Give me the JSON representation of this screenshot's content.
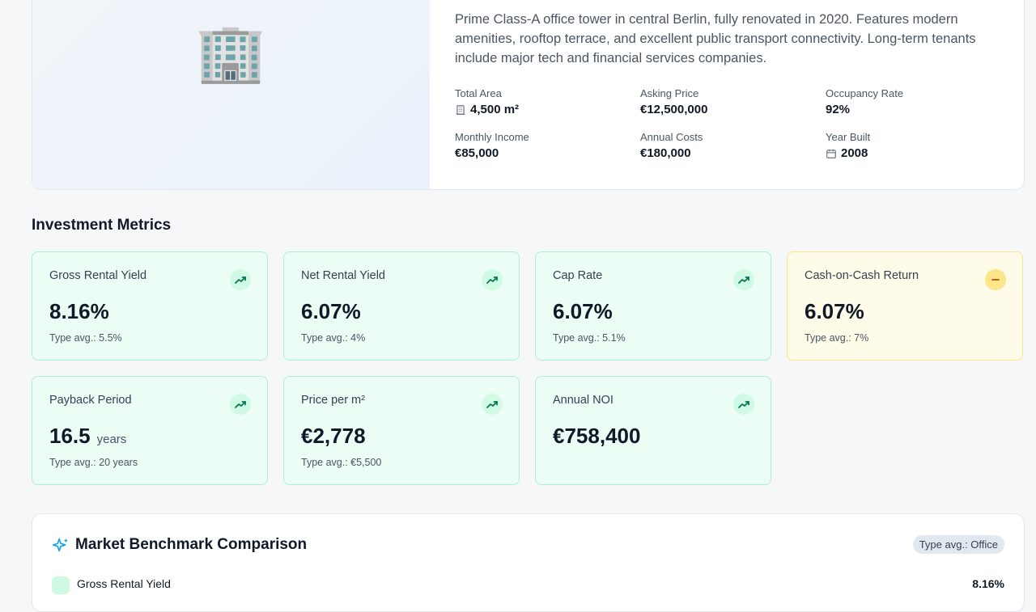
{
  "property": {
    "image": "🏢",
    "description": "Prime Class-A office tower in central Berlin, fully renovated in 2020. Features modern amenities, rooftop terrace, and excellent public transport connectivity. Long-term tenants include major tech and financial services companies.",
    "stats": [
      {
        "label": "Total Area",
        "value": "4,500 m²",
        "icon": "building"
      },
      {
        "label": "Asking Price",
        "value": "€12,500,000"
      },
      {
        "label": "Occupancy Rate",
        "value": "92%"
      },
      {
        "label": "Monthly Income",
        "value": "€85,000"
      },
      {
        "label": "Annual Costs",
        "value": "€180,000"
      },
      {
        "label": "Year Built",
        "value": "2008",
        "icon": "calendar"
      }
    ]
  },
  "metrics": {
    "title": "Investment Metrics",
    "cards": [
      {
        "title": "Gross Rental Yield",
        "value": "8.16%",
        "note": "Type avg.: 5.5%",
        "trend": "up"
      },
      {
        "title": "Net Rental Yield",
        "value": "6.07%",
        "note": "Type avg.: 4%",
        "trend": "up"
      },
      {
        "title": "Cap Rate",
        "value": "6.07%",
        "note": "Type avg.: 5.1%",
        "trend": "up"
      },
      {
        "title": "Cash-on-Cash Return",
        "value": "6.07%",
        "note": "Type avg.: 7%",
        "trend": "flat"
      },
      {
        "title": "Payback Period",
        "value": "16.5",
        "unit": "years",
        "note": "Type avg.: 20 years",
        "trend": "up"
      },
      {
        "title": "Price per m²",
        "value": "€2,778",
        "note": "Type avg.: €5,500",
        "trend": "up"
      },
      {
        "title": "Annual NOI",
        "value": "€758,400",
        "trend": "up"
      }
    ]
  },
  "benchmark": {
    "title": "Market Benchmark Comparison",
    "badge": "Type avg.: Office",
    "rows": [
      {
        "label": "Gross Rental Yield",
        "value": "8.16%"
      }
    ]
  }
}
